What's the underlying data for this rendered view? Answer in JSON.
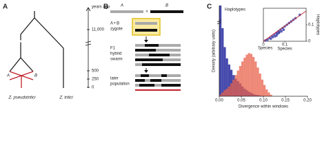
{
  "panel_a": {
    "label": "A",
    "time_axis": {
      "title": "years ago",
      "ticks": [
        "11,000",
        "500",
        "250",
        "0"
      ]
    },
    "hybrid_labels": [
      "A",
      "B"
    ],
    "species": [
      "Z. pseudotritici",
      "Z. tritici"
    ]
  },
  "panel_b": {
    "label": "B",
    "parents": [
      "A",
      "B"
    ],
    "steps": [
      [
        "A • B",
        "zygote"
      ],
      [
        "F1",
        "hybrid",
        "swarm"
      ],
      [
        "later",
        "population"
      ]
    ]
  },
  "panel_c_label": "C",
  "chart_data": [
    {
      "type": "histogram",
      "xlabel": "Divergence within windows",
      "ylabel": "Density (arbitrary units)",
      "bins": [
        0,
        0.005,
        0.01,
        0.015,
        0.02,
        0.025,
        0.03,
        0.035,
        0.04,
        0.045,
        0.05,
        0.055,
        0.06,
        0.065,
        0.07,
        0.075,
        0.08,
        0.085,
        0.09,
        0.095,
        0.1,
        0.105,
        0.11,
        0.115,
        0.12
      ],
      "series": [
        {
          "name": "Haplotypes",
          "color": "#3b3fa8",
          "values": [
            12,
            9,
            6.5,
            5,
            4.2,
            3.5,
            2.8,
            2.3,
            2,
            1.7,
            1.3,
            1,
            0.8,
            0.6,
            0.45,
            0.3,
            0.2,
            0.15,
            0.1,
            0.05,
            0,
            0,
            0,
            0
          ]
        },
        {
          "name": "Species",
          "color": "#e8604a",
          "values": [
            0.2,
            0.5,
            0.8,
            1,
            1.3,
            1.7,
            2.2,
            2.8,
            3.4,
            4,
            4.6,
            5.1,
            5.5,
            5.7,
            5.6,
            5.2,
            4.6,
            3.8,
            3,
            2.2,
            1.5,
            0.9,
            0.5,
            0.2
          ]
        }
      ],
      "xlim": [
        0,
        0.2
      ],
      "ylim": [
        0,
        12
      ],
      "xticks": [
        {
          "value": 0,
          "label": "0.00"
        },
        {
          "value": 0.05,
          "label": "0.05"
        },
        {
          "value": 0.1,
          "label": "0.10"
        },
        {
          "value": 0.15,
          "label": "0.15"
        },
        {
          "value": 0.2,
          "label": "0.20"
        }
      ]
    },
    {
      "type": "scatter",
      "xlabel": "Species",
      "ylabel": "Haplotypes",
      "color": "#3b3fa8",
      "x": [
        0.01,
        0.02,
        0.03,
        0.035,
        0.04,
        0.045,
        0.05,
        0.055,
        0.06,
        0.062,
        0.065,
        0.07,
        0.072,
        0.075,
        0.08,
        0.085,
        0.09,
        0.095,
        0.1,
        0.11,
        0.12,
        0.13,
        0.14,
        0.15,
        0.17
      ],
      "y": [
        0.005,
        0.01,
        0.02,
        0.015,
        0.03,
        0.025,
        0.04,
        0.03,
        0.05,
        0.035,
        0.045,
        0.06,
        0.05,
        0.055,
        0.07,
        0.06,
        0.08,
        0.07,
        0.09,
        0.1,
        0.11,
        0.12,
        0.13,
        0.14,
        0.16
      ],
      "xlim": [
        0,
        0.2
      ],
      "ylim": [
        0,
        0.2
      ],
      "xticks": [
        0,
        0.1
      ],
      "yticks": [
        0,
        0.1
      ]
    }
  ]
}
